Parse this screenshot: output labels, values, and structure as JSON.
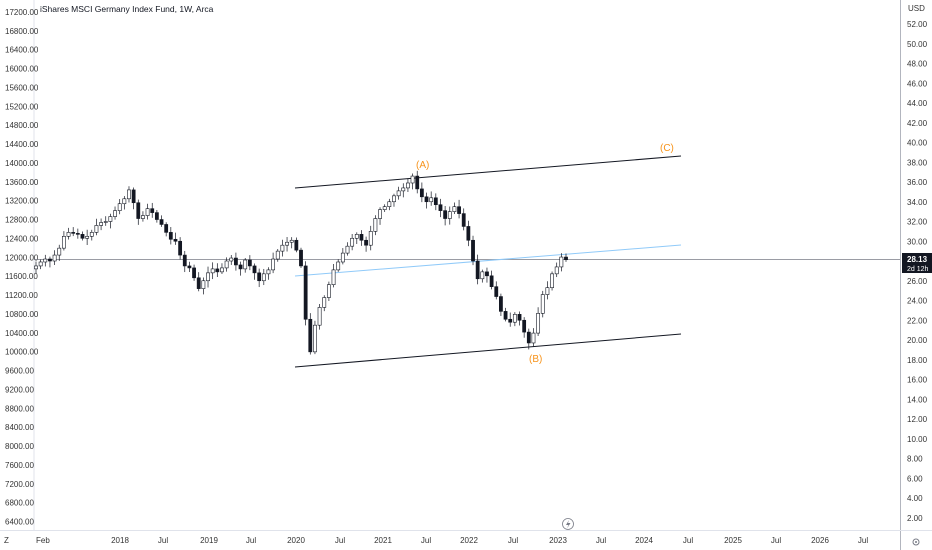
{
  "chart_title": "iShares MSCI Germany Index Fund, 1W, Arca",
  "currency": "USD",
  "colors": {
    "candle": "#131722",
    "channel": "#131722",
    "midline": "#90caf9",
    "wave_label": "#f7931a",
    "price_tag": "#131722"
  },
  "icons": {
    "bottom_left": "Z",
    "bottom_center": "lightning-icon",
    "bottom_right": "settings-icon"
  },
  "chart_data": {
    "type": "candlestick",
    "title": "iShares MSCI Germany Index Fund, 1W, Arca",
    "left_axis": {
      "ticks": [
        "17200.00",
        "16800.00",
        "16400.00",
        "16000.00",
        "15600.00",
        "15200.00",
        "14800.00",
        "14400.00",
        "14000.00",
        "13600.00",
        "13200.00",
        "12800.00",
        "12400.00",
        "12000.00",
        "11600.00",
        "11200.00",
        "10800.00",
        "10400.00",
        "10000.00",
        "9600.00",
        "9200.00",
        "8800.00",
        "8400.00",
        "8000.00",
        "7600.00",
        "7200.00",
        "6800.00",
        "6400.00"
      ]
    },
    "right_axis": {
      "unit": "USD",
      "ticks": [
        "52.00",
        "50.00",
        "48.00",
        "46.00",
        "44.00",
        "42.00",
        "40.00",
        "38.00",
        "36.00",
        "34.00",
        "32.00",
        "30.00",
        "28.00",
        "26.00",
        "24.00",
        "22.00",
        "20.00",
        "18.00",
        "16.00",
        "14.00",
        "12.00",
        "10.00",
        "8.00",
        "6.00",
        "4.00",
        "2.00"
      ]
    },
    "x_axis": {
      "ticks": [
        "Feb",
        "2018",
        "Jul",
        "2019",
        "Jul",
        "2020",
        "Jul",
        "2021",
        "Jul",
        "2022",
        "Jul",
        "2023",
        "Jul",
        "2024",
        "Jul",
        "2025",
        "Jul",
        "2026",
        "Jul"
      ]
    },
    "last_price": "28.13",
    "last_price_countdown": "2d 12h",
    "closes": [
      27.5,
      27.9,
      28.2,
      28.0,
      28.6,
      29.3,
      30.5,
      30.9,
      30.8,
      30.7,
      30.3,
      30.5,
      30.9,
      31.6,
      31.9,
      32.0,
      32.5,
      33.1,
      33.8,
      34.3,
      35.2,
      33.9,
      32.3,
      32.6,
      33.3,
      32.9,
      32.2,
      31.7,
      30.9,
      30.2,
      30.0,
      28.6,
      27.5,
      27.3,
      26.3,
      25.2,
      26.0,
      26.8,
      27.2,
      26.9,
      27.3,
      28.0,
      28.3,
      27.6,
      27.2,
      28.1,
      27.5,
      26.8,
      26.0,
      26.7,
      27.1,
      28.2,
      29.0,
      29.6,
      29.9,
      30.1,
      29.1,
      27.5,
      22.1,
      18.8,
      21.5,
      23.3,
      24.3,
      25.6,
      27.1,
      27.9,
      28.8,
      29.5,
      30.3,
      30.7,
      30.1,
      29.6,
      31.0,
      32.3,
      33.2,
      33.5,
      34.0,
      34.6,
      35.1,
      35.4,
      35.9,
      36.6,
      35.3,
      34.5,
      34.0,
      34.4,
      33.7,
      33.1,
      32.3,
      33.0,
      33.5,
      32.8,
      31.5,
      30.1,
      28.0,
      26.2,
      26.9,
      26.5,
      25.4,
      24.4,
      22.9,
      22.1,
      21.8,
      22.6,
      22.0,
      20.8,
      19.7,
      20.7,
      22.7,
      24.6,
      25.3,
      26.7,
      27.4,
      28.4,
      28.13
    ]
  },
  "annotations": {
    "wave_a": "(A)",
    "wave_b": "(B)",
    "wave_c": "(C)"
  }
}
